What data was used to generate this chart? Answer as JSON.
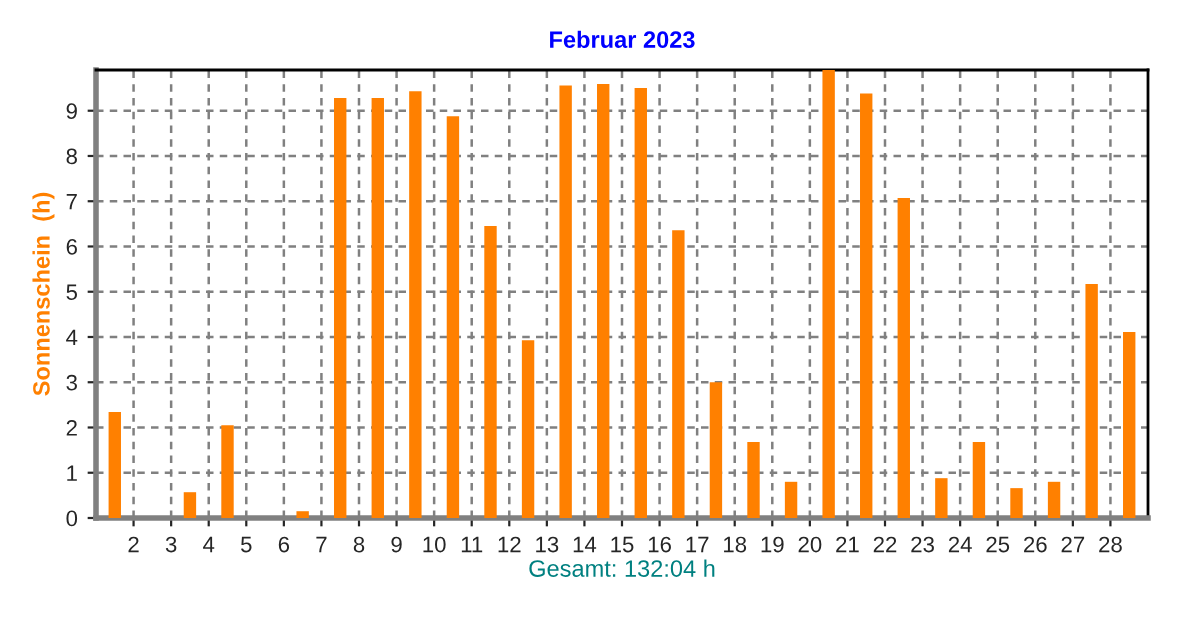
{
  "chart_data": {
    "type": "bar",
    "title": "Februar 2023",
    "xlabel": "Gesamt: 132:04 h",
    "ylabel": "Sonnenschein  (h)",
    "x": [
      1.5,
      2.5,
      3.5,
      4.5,
      5.5,
      6.5,
      7.5,
      8.5,
      9.5,
      10.5,
      11.5,
      12.5,
      13.5,
      14.5,
      15.5,
      16.5,
      17.5,
      18.5,
      19.5,
      20.5,
      21.5,
      22.5,
      23.5,
      24.5,
      25.5,
      26.5,
      27.5,
      28.5
    ],
    "values": [
      2.34,
      0,
      0.57,
      2.05,
      0,
      0.15,
      9.28,
      9.28,
      9.43,
      8.88,
      6.45,
      3.93,
      9.56,
      9.59,
      9.5,
      6.36,
      3.0,
      1.68,
      0.8,
      9.9,
      9.38,
      7.07,
      0.88,
      1.68,
      0.66,
      0.8,
      5.17,
      4.11
    ],
    "color": "#ff8000",
    "xlim": [
      1,
      29
    ],
    "xticks": [
      2,
      3,
      4,
      5,
      6,
      7,
      8,
      9,
      10,
      11,
      12,
      13,
      14,
      15,
      16,
      17,
      18,
      19,
      20,
      21,
      22,
      23,
      24,
      25,
      26,
      27,
      28
    ],
    "ylim": [
      0,
      9.9
    ],
    "yticks": [
      0,
      1,
      2,
      3,
      4,
      5,
      6,
      7,
      8,
      9
    ],
    "grid": true
  }
}
